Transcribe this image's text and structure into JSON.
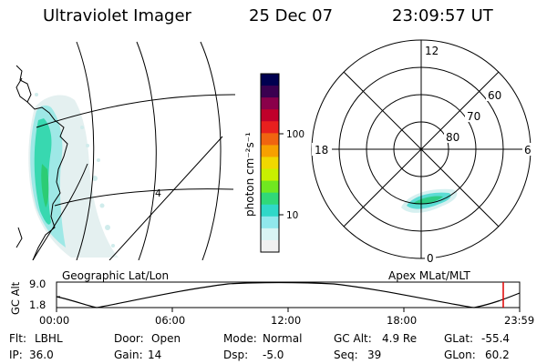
{
  "header": {
    "instrument": "Ultraviolet Imager",
    "date": "25 Dec 07",
    "time": "23:09:57 UT"
  },
  "geo_map": {
    "title": "Geographic Lat/Lon",
    "grid_label": "4"
  },
  "colorbar": {
    "unit_label": "photon cm⁻²s⁻¹",
    "tick_labels": [
      "100",
      "10"
    ],
    "colors": [
      "#000050",
      "#3a0050",
      "#8a004a",
      "#c0002a",
      "#e8201e",
      "#f06410",
      "#f7a000",
      "#f0d800",
      "#c8f000",
      "#70e820",
      "#30d878",
      "#30d8c8",
      "#90e8ec",
      "#d8f4f4",
      "#f0f0f0"
    ]
  },
  "polar_plot": {
    "title": "Apex MLat/MLT",
    "mlt_labels": {
      "top": "12",
      "right": "6",
      "left": "18",
      "bottom": "0"
    },
    "mlat_labels": [
      "60",
      "70",
      "80"
    ]
  },
  "timeline": {
    "axis_title": "GC Alt",
    "y_ticks": [
      "9.0",
      "1.8"
    ],
    "x_ticks": [
      "00:00",
      "06:00",
      "12:00",
      "18:00",
      "23:59"
    ],
    "current_marker_color": "#e00000"
  },
  "status": {
    "row1": [
      {
        "label": "Flt:",
        "value": "LBHL"
      },
      {
        "label": "Door:",
        "value": "Open"
      },
      {
        "label": "Mode:",
        "value": "Normal"
      },
      {
        "label": "GC Alt:",
        "value": "4.9 Re"
      },
      {
        "label": "GLat:",
        "value": "-55.4"
      }
    ],
    "row2": [
      {
        "label": "IP:",
        "value": "36.0"
      },
      {
        "label": "Gain:",
        "value": "14"
      },
      {
        "label": "Dsp:",
        "value": "-5.0"
      },
      {
        "label": "Seq:",
        "value": "39"
      },
      {
        "label": "GLon:",
        "value": "60.2"
      }
    ]
  }
}
